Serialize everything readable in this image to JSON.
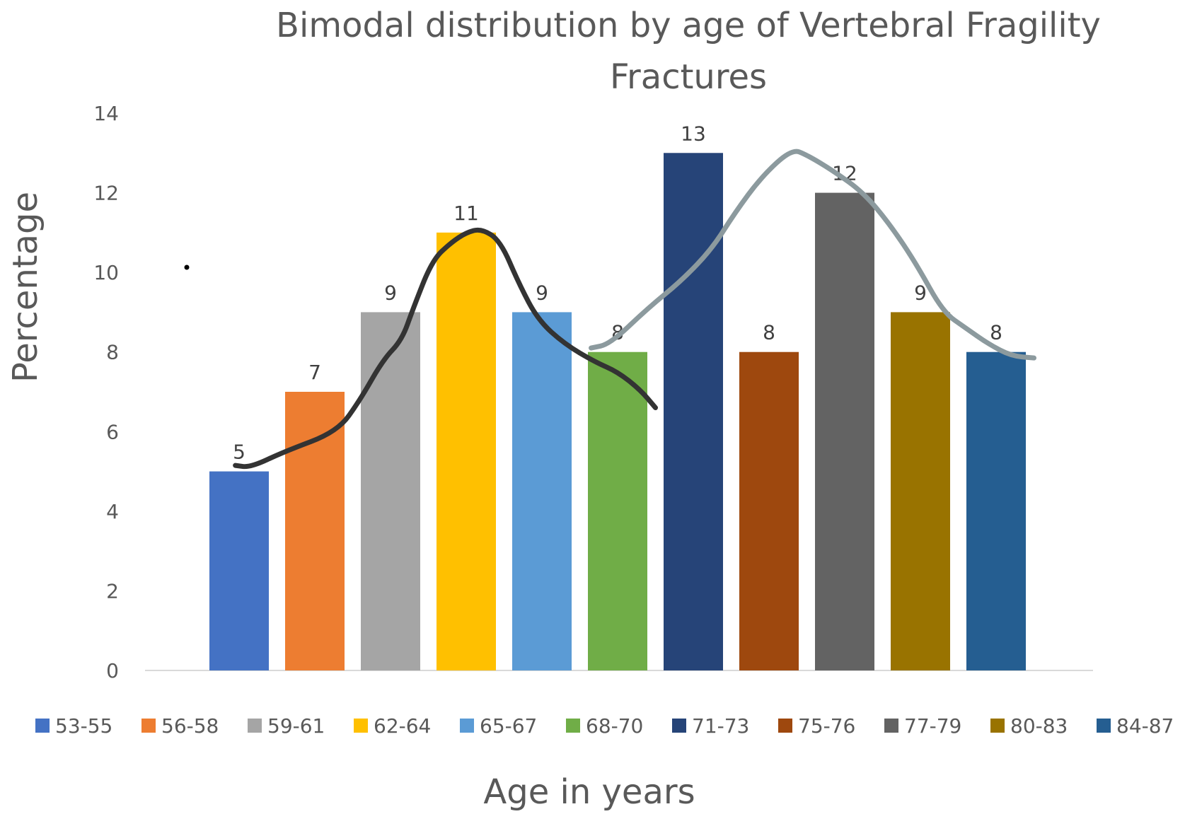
{
  "chart_data": {
    "type": "bar",
    "title_lines": [
      "Bimodal distribution by age of Vertebral Fragility",
      "Fractures"
    ],
    "xlabel": "Age in years",
    "ylabel": "Percentage",
    "ylim": [
      0,
      14
    ],
    "yticks": [
      "0",
      "2",
      "4",
      "6",
      "8",
      "10",
      "12",
      "14"
    ],
    "grid": false,
    "legend_position": "bottom",
    "categories": [
      "53-55",
      "56-58",
      "59-61",
      "62-64",
      "65-67",
      "68-70",
      "71-73",
      "75-76",
      "77-79",
      "80-83",
      "84-87"
    ],
    "values": [
      5,
      7,
      9,
      11,
      9,
      8,
      13,
      8,
      12,
      9,
      8
    ],
    "data_labels": [
      "5",
      "7",
      "9",
      "11",
      "9",
      "8",
      "13",
      "8",
      "12",
      "9",
      "8"
    ],
    "colors": [
      "#4472C4",
      "#ED7D31",
      "#A5A5A5",
      "#FFC000",
      "#5B9BD5",
      "#70AD47",
      "#264478",
      "#9E480E",
      "#636363",
      "#997300",
      "#255E91"
    ],
    "annotations": [
      {
        "type": "hand-drawn-curve",
        "color": "#333333",
        "points": [
          [
            -0.05,
            5.15
          ],
          [
            0.15,
            5.1
          ],
          [
            0.6,
            5.5
          ],
          [
            1.3,
            6.0
          ],
          [
            1.6,
            6.8
          ],
          [
            1.9,
            7.8
          ],
          [
            2.15,
            8.3
          ],
          [
            2.3,
            9.1
          ],
          [
            2.55,
            10.3
          ],
          [
            2.8,
            10.75
          ],
          [
            3.0,
            11.0
          ],
          [
            3.2,
            11.1
          ],
          [
            3.45,
            10.8
          ],
          [
            3.7,
            9.7
          ],
          [
            3.95,
            8.8
          ],
          [
            4.3,
            8.2
          ],
          [
            4.7,
            7.75
          ],
          [
            5.0,
            7.5
          ],
          [
            5.3,
            7.05
          ],
          [
            5.5,
            6.6
          ]
        ]
      },
      {
        "type": "hand-drawn-curve",
        "color": "#8C9A9E",
        "points": [
          [
            4.65,
            8.1
          ],
          [
            4.9,
            8.2
          ],
          [
            5.4,
            9.1
          ],
          [
            5.85,
            9.8
          ],
          [
            6.25,
            10.6
          ],
          [
            6.55,
            11.5
          ],
          [
            6.9,
            12.4
          ],
          [
            7.3,
            13.1
          ],
          [
            7.5,
            12.95
          ],
          [
            7.85,
            12.55
          ],
          [
            8.25,
            12.0
          ],
          [
            8.6,
            11.2
          ],
          [
            8.95,
            10.2
          ],
          [
            9.3,
            9.0
          ],
          [
            9.6,
            8.6
          ],
          [
            9.9,
            8.2
          ],
          [
            10.2,
            7.9
          ],
          [
            10.5,
            7.85
          ]
        ]
      }
    ]
  }
}
